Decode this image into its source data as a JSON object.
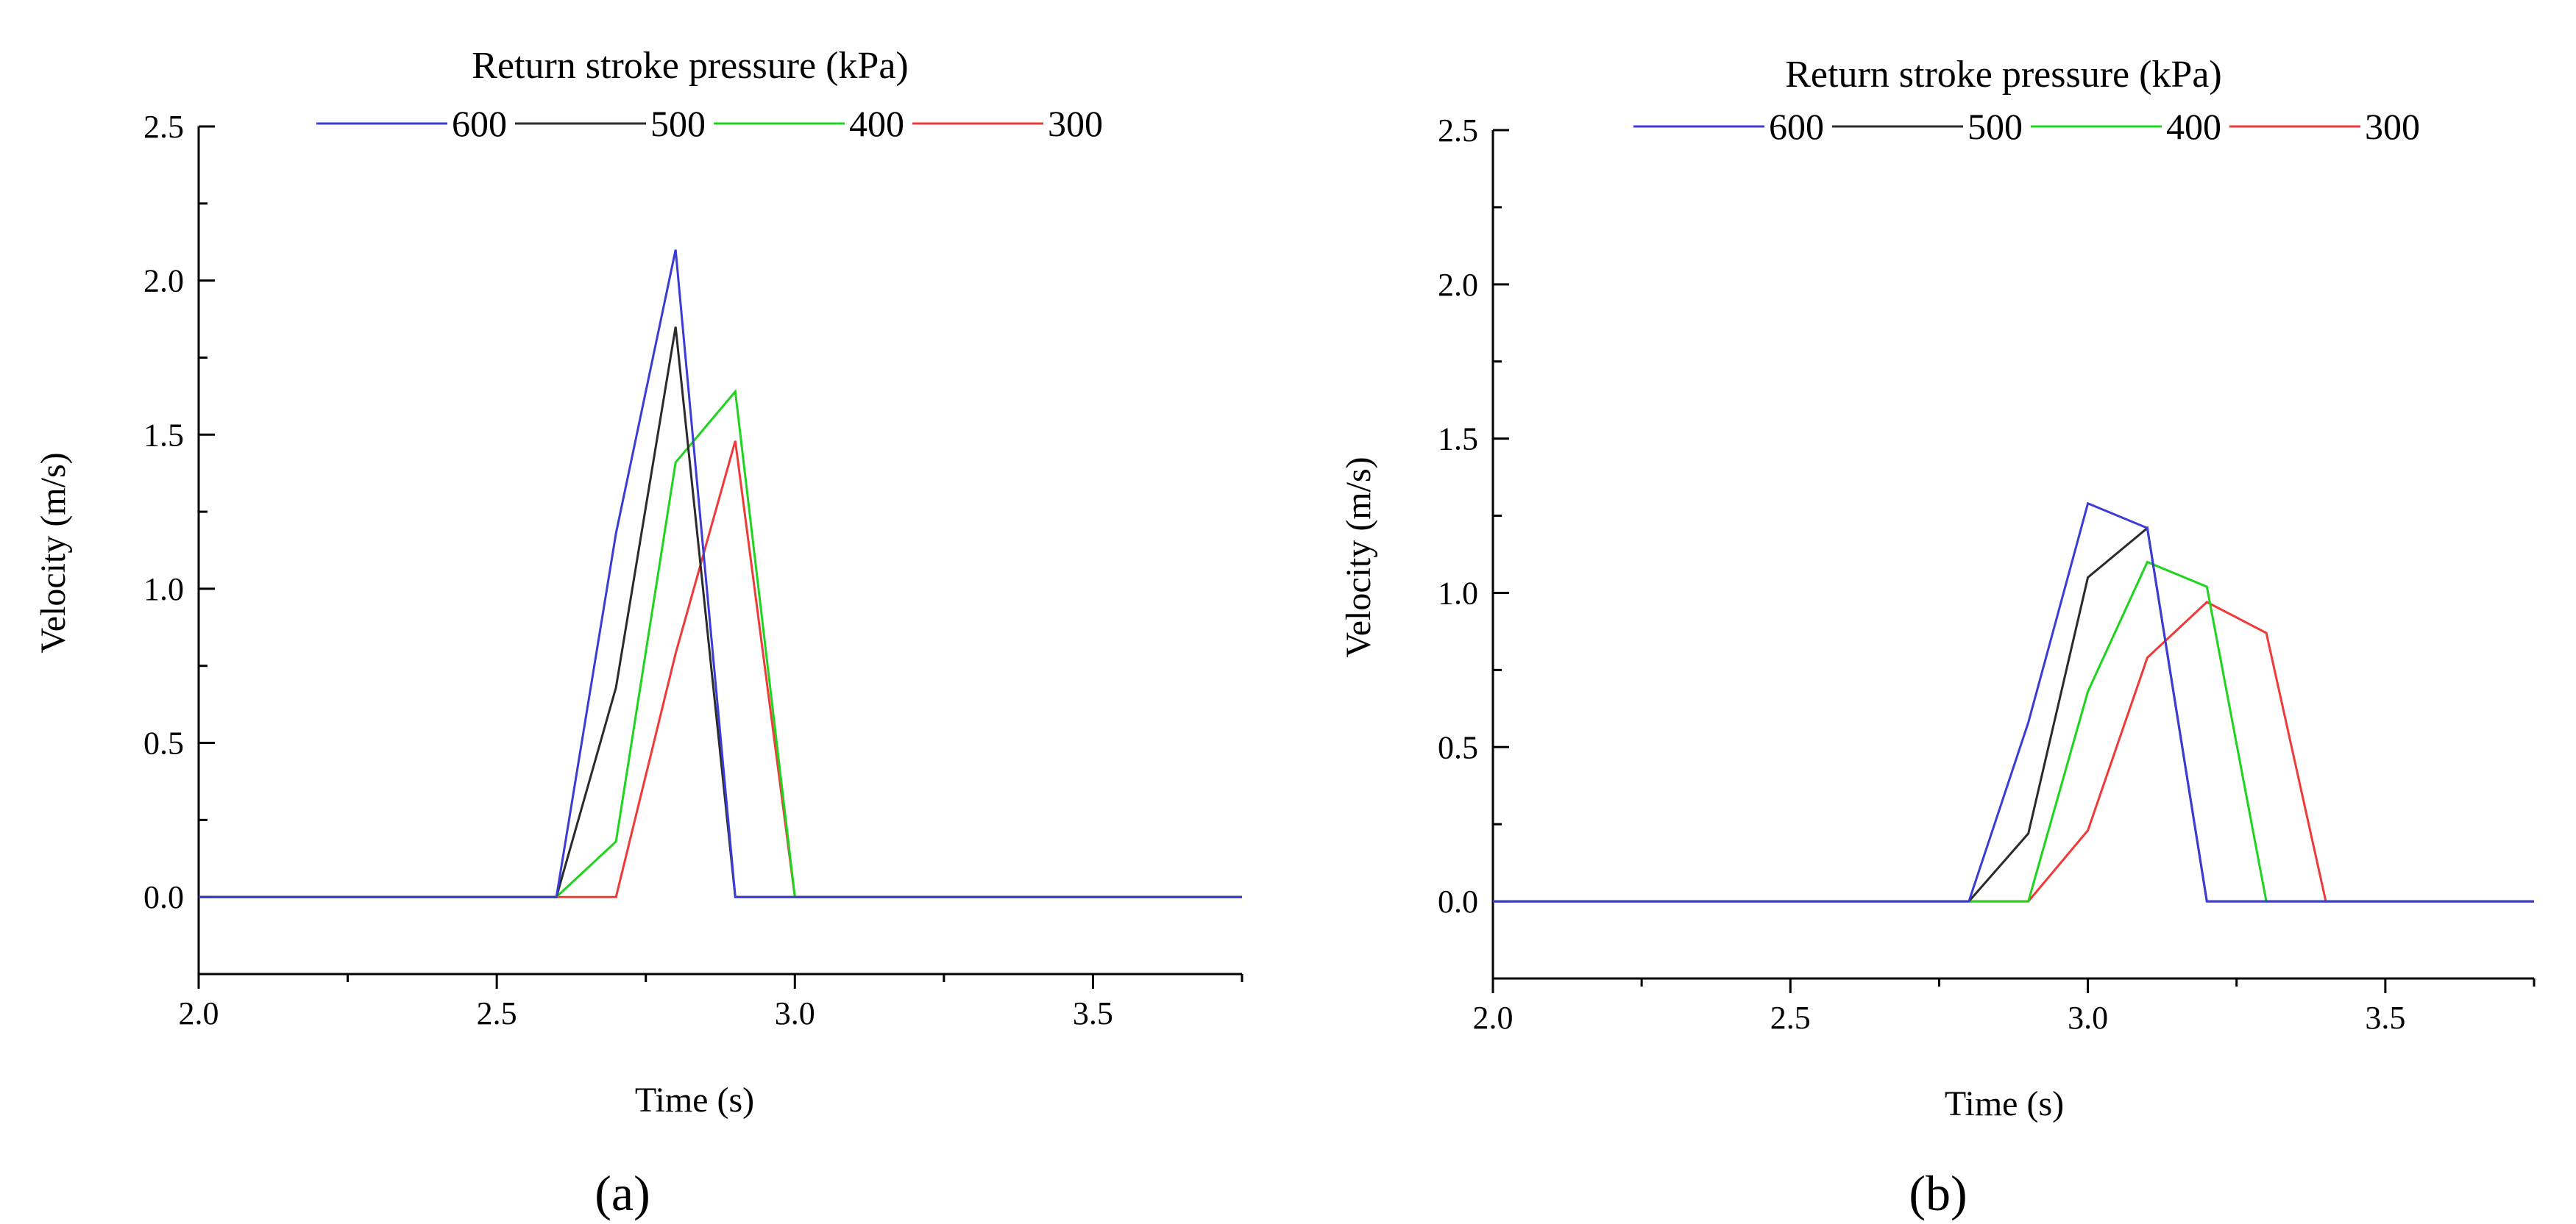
{
  "chart_data": [
    {
      "type": "line",
      "panel_label": "(a)",
      "legend_title": "Return stroke pressure (kPa)",
      "xlabel": "Time (s)",
      "ylabel": "Velocity (m/s)",
      "xlim": [
        2.0,
        3.75
      ],
      "ylim": [
        -0.25,
        2.5
      ],
      "xticks": [
        2.0,
        2.5,
        3.0,
        3.5
      ],
      "xtick_labels": [
        "2.0",
        "2.5",
        "3.0",
        "3.5"
      ],
      "yticks": [
        0.0,
        0.5,
        1.0,
        1.5,
        2.0,
        2.5
      ],
      "ytick_labels": [
        "0.0",
        "0.5",
        "1.0",
        "1.5",
        "2.0",
        "2.5"
      ],
      "series": [
        {
          "name": "600",
          "color": "#3b3bd6",
          "x": [
            2.0,
            2.6,
            2.7,
            2.8,
            2.9,
            3.75
          ],
          "y": [
            0,
            0,
            1.18,
            2.1,
            0,
            0
          ]
        },
        {
          "name": "500",
          "color": "#2b2b2b",
          "x": [
            2.0,
            2.6,
            2.7,
            2.8,
            2.9,
            3.75
          ],
          "y": [
            0,
            0,
            0.68,
            1.85,
            0,
            0
          ]
        },
        {
          "name": "400",
          "color": "#1ed41e",
          "x": [
            2.0,
            2.6,
            2.7,
            2.8,
            2.9,
            3.0,
            3.75
          ],
          "y": [
            0,
            0,
            0.18,
            1.41,
            1.64,
            0,
            0
          ]
        },
        {
          "name": "300",
          "color": "#f03a3a",
          "x": [
            2.0,
            2.7,
            2.8,
            2.9,
            3.0,
            3.75
          ],
          "y": [
            0,
            0,
            0.79,
            1.48,
            0,
            0
          ]
        }
      ]
    },
    {
      "type": "line",
      "panel_label": "(b)",
      "legend_title": "Return stroke pressure (kPa)",
      "xlabel": "Time (s)",
      "ylabel": "Velocity (m/s)",
      "xlim": [
        2.0,
        3.75
      ],
      "ylim": [
        -0.25,
        2.5
      ],
      "xticks": [
        2.0,
        2.5,
        3.0,
        3.5
      ],
      "xtick_labels": [
        "2.0",
        "2.5",
        "3.0",
        "3.5"
      ],
      "yticks": [
        0.0,
        0.5,
        1.0,
        1.5,
        2.0,
        2.5
      ],
      "ytick_labels": [
        "0.0",
        "0.5",
        "1.0",
        "1.5",
        "2.0",
        "2.5"
      ],
      "series": [
        {
          "name": "600",
          "color": "#3b3bd6",
          "x": [
            2.0,
            2.8,
            2.9,
            3.0,
            3.1,
            3.2,
            3.75
          ],
          "y": [
            0,
            0,
            0.58,
            1.29,
            1.21,
            0,
            0
          ]
        },
        {
          "name": "500",
          "color": "#2b2b2b",
          "x": [
            2.0,
            2.8,
            2.9,
            3.0,
            3.1,
            3.2,
            3.75
          ],
          "y": [
            0,
            0,
            0.22,
            1.05,
            1.21,
            0,
            0
          ]
        },
        {
          "name": "400",
          "color": "#1ed41e",
          "x": [
            2.0,
            2.9,
            3.0,
            3.1,
            3.2,
            3.3,
            3.75
          ],
          "y": [
            0,
            0,
            0.68,
            1.1,
            1.02,
            0,
            0
          ]
        },
        {
          "name": "300",
          "color": "#f03a3a",
          "x": [
            2.0,
            2.9,
            3.0,
            3.1,
            3.2,
            3.3,
            3.4,
            3.75
          ],
          "y": [
            0,
            0,
            0.23,
            0.79,
            0.97,
            0.87,
            0,
            0
          ]
        }
      ]
    }
  ]
}
